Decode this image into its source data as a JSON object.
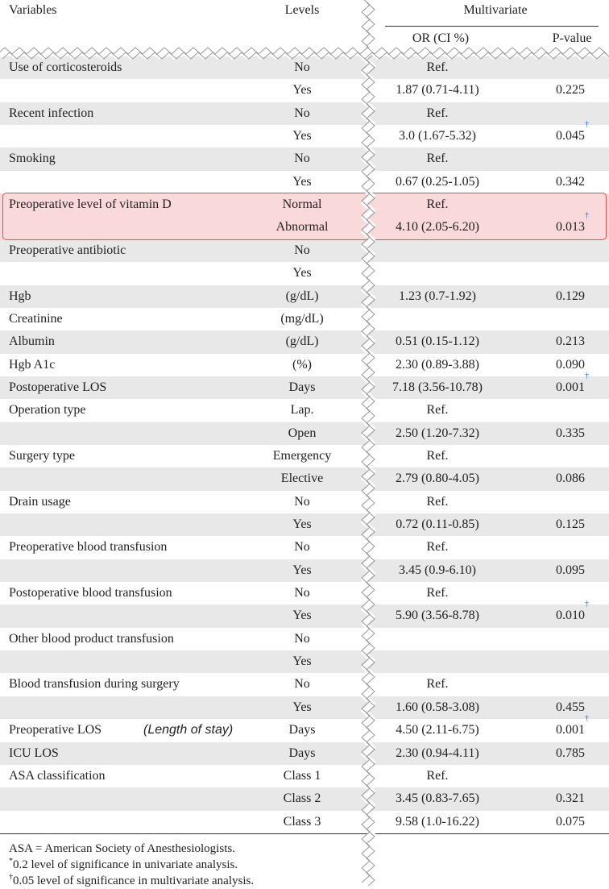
{
  "header": {
    "variables": "Variables",
    "levels": "Levels",
    "group": "Multivariate",
    "or": "OR (CI %)",
    "p": "P-value"
  },
  "rows": [
    {
      "variable": "Use of corticosteroids",
      "level": "No",
      "or": "Ref."
    },
    {
      "level": "Yes",
      "or": "1.87 (0.71-4.11)",
      "p": "0.225"
    },
    {
      "variable": "Recent infection",
      "level": "No",
      "or": "Ref."
    },
    {
      "level": "Yes",
      "or": "3.0 (1.67-5.32)",
      "p": "0.045",
      "sup": "†"
    },
    {
      "variable": "Smoking",
      "level": "No",
      "or": "Ref."
    },
    {
      "level": "Yes",
      "or": "0.67 (0.25-1.05)",
      "p": "0.342"
    },
    {
      "variable": "Preoperative level of vitamin D",
      "level": "Normal",
      "or": "Ref.",
      "highlight": true
    },
    {
      "level": "Abnormal",
      "or": "4.10 (2.05-6.20)",
      "p": "0.013",
      "sup": "†",
      "highlight": true
    },
    {
      "variable": "Preoperative antibiotic",
      "level": "No"
    },
    {
      "level": "Yes"
    },
    {
      "variable": "Hgb",
      "level": "(g/dL)",
      "or": "1.23 (0.7-1.92)",
      "p": "0.129"
    },
    {
      "variable": "Creatinine",
      "level": "(mg/dL)"
    },
    {
      "variable": "Albumin",
      "level": "(g/dL)",
      "or": "0.51 (0.15-1.12)",
      "p": "0.213"
    },
    {
      "variable": "Hgb A1c",
      "level": "(%)",
      "or": "2.30 (0.89-3.88)",
      "p": "0.090"
    },
    {
      "variable": "Postoperative LOS",
      "level": "Days",
      "or": "7.18 (3.56-10.78)",
      "p": "0.001",
      "sup": "†"
    },
    {
      "variable": "Operation type",
      "level": "Lap.",
      "or": "Ref."
    },
    {
      "level": "Open",
      "or": "2.50 (1.20-7.32)",
      "p": "0.335"
    },
    {
      "variable": "Surgery type",
      "level": "Emergency",
      "or": "Ref."
    },
    {
      "level": "Elective",
      "or": "2.79 (0.80-4.05)",
      "p": "0.086"
    },
    {
      "variable": "Drain usage",
      "level": "No",
      "or": "Ref."
    },
    {
      "level": "Yes",
      "or": "0.72 (0.11-0.85)",
      "p": "0.125"
    },
    {
      "variable": "Preoperative blood transfusion",
      "level": "No",
      "or": "Ref."
    },
    {
      "level": "Yes",
      "or": "3.45 (0.9-6.10)",
      "p": "0.095"
    },
    {
      "variable": "Postoperative blood transfusion",
      "level": "No",
      "or": "Ref."
    },
    {
      "level": "Yes",
      "or": "5.90 (3.56-8.78)",
      "p": "0.010",
      "sup": "†"
    },
    {
      "variable": "Other blood product transfusion",
      "level": "No"
    },
    {
      "level": "Yes"
    },
    {
      "variable": "Blood transfusion during surgery",
      "level": "No",
      "or": "Ref."
    },
    {
      "level": "Yes",
      "or": "1.60 (0.58-3.08)",
      "p": "0.455"
    },
    {
      "variable": "Preoperative LOS",
      "annotation": "(Length of stay)",
      "level": "Days",
      "or": "4.50 (2.11-6.75)",
      "p": "0.001",
      "sup": "†"
    },
    {
      "variable": "ICU LOS",
      "level": "Days",
      "or": "2.30 (0.94-4.11)",
      "p": "0.785"
    },
    {
      "variable": "ASA classification",
      "level": "Class 1",
      "or": "Ref."
    },
    {
      "level": "Class 2",
      "or": "3.45 (0.83-7.65)",
      "p": "0.321"
    },
    {
      "level": "Class 3",
      "or": "9.58 (1.0-16.22)",
      "p": "0.075"
    }
  ],
  "footnotes": [
    {
      "text": "ASA = American Society of Anesthesiologists."
    },
    {
      "sup": "*",
      "text": "0.2 level of significance in univariate analysis."
    },
    {
      "sup": "†",
      "text": "0.05 level of significance in multivariate analysis."
    }
  ]
}
